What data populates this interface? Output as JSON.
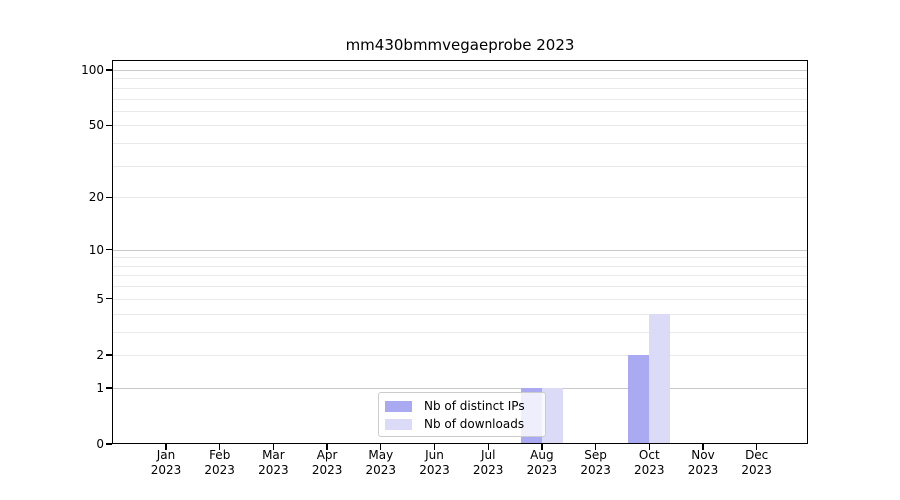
{
  "chart_data": {
    "type": "bar",
    "title": "mm430bmmvegaeprobe 2023",
    "categories": [
      "Jan",
      "Feb",
      "Mar",
      "Apr",
      "May",
      "Jun",
      "Jul",
      "Aug",
      "Sep",
      "Oct",
      "Nov",
      "Dec"
    ],
    "x_year_label": "2023",
    "series": [
      {
        "name": "Nb of distinct IPs",
        "color": "#aaaaf2",
        "values": [
          0,
          0,
          0,
          0,
          0,
          0,
          0,
          1,
          0,
          2,
          0,
          0
        ]
      },
      {
        "name": "Nb of downloads",
        "color": "#dbdbf8",
        "values": [
          0,
          0,
          0,
          0,
          0,
          0,
          0,
          1,
          0,
          4,
          0,
          0
        ]
      }
    ],
    "y_scale": "log1p",
    "y_ticks": [
      0,
      1,
      2,
      5,
      10,
      20,
      50,
      100
    ],
    "y_minor_ticks": [
      2,
      3,
      4,
      5,
      6,
      7,
      8,
      9,
      20,
      30,
      40,
      50,
      60,
      70,
      80,
      90
    ],
    "y_major_gridlines": [
      1,
      10,
      100
    ],
    "ylim": [
      0,
      114
    ],
    "xlabel": "",
    "ylabel": "",
    "grid": "horizontal",
    "legend_position": "lower-center"
  },
  "colors": {
    "background": "#ffffff",
    "axis": "#000000",
    "grid_major": "#c9c9c9",
    "grid_minor": "#e9e9e9",
    "legend_border": "#cccccc",
    "text": "#000000"
  }
}
